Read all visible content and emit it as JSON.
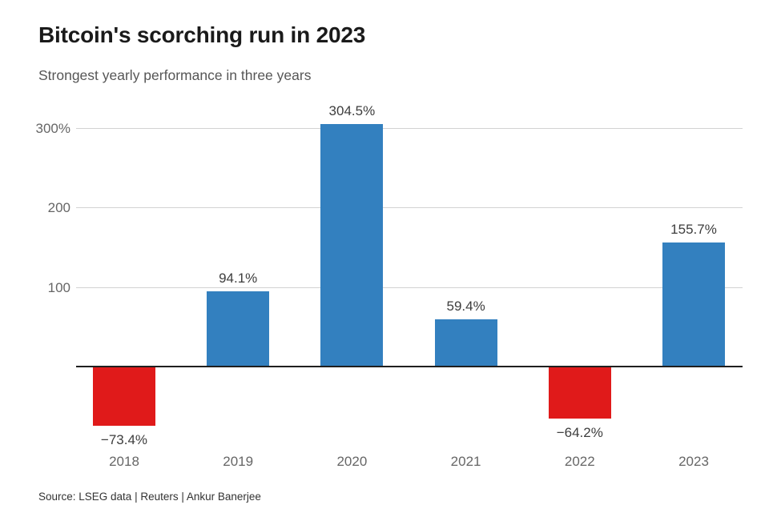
{
  "header": {
    "title": "Bitcoin's scorching run in 2023",
    "subtitle": "Strongest yearly performance in three years"
  },
  "footer": {
    "source": "Source: LSEG data | Reuters | Ankur Banerjee"
  },
  "chart_data": {
    "type": "bar",
    "title": "Bitcoin's scorching run in 2023",
    "subtitle": "Strongest yearly performance in three years",
    "xlabel": "",
    "ylabel": "",
    "categories": [
      "2018",
      "2019",
      "2020",
      "2021",
      "2022",
      "2023"
    ],
    "values": [
      -73.4,
      94.1,
      304.5,
      59.4,
      -64.2,
      155.7
    ],
    "value_labels": [
      "−73.4%",
      "94.1%",
      "304.5%",
      "59.4%",
      "−64.2%",
      "155.7%"
    ],
    "y_ticks": [
      {
        "value": 300,
        "label": "300%"
      },
      {
        "value": 200,
        "label": "200"
      },
      {
        "value": 100,
        "label": "100"
      }
    ],
    "ylim": [
      -110,
      320
    ],
    "grid": "horizontal",
    "legend": "none",
    "colors": {
      "positive_bar": "#3380bf",
      "negative_bar": "#e01a1a",
      "gridline": "#d2d2d2",
      "zero_axis": "#1f1f1f",
      "tick_text": "#666666",
      "value_text": "#3d3d3d"
    },
    "source": "Source: LSEG data | Reuters | Ankur Banerjee"
  }
}
